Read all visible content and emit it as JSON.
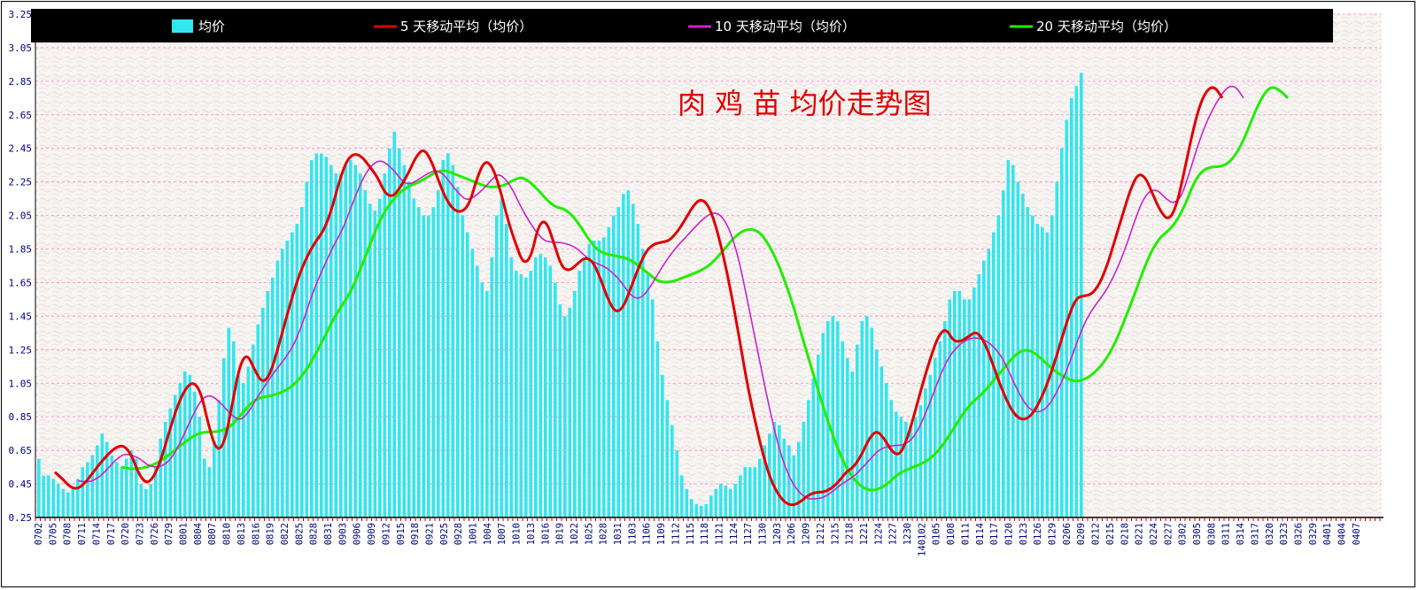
{
  "chart_data": {
    "type": "bar",
    "title": "肉 鸡 苗 均价走势图",
    "ylim": [
      0.25,
      3.25
    ],
    "y_ticks": [
      "0.25",
      "0.45",
      "0.65",
      "0.85",
      "1.05",
      "1.25",
      "1.45",
      "1.65",
      "1.85",
      "2.05",
      "2.25",
      "2.45",
      "2.65",
      "2.85",
      "3.05",
      "3.25"
    ],
    "x_ticks": [
      "0702",
      "0705",
      "0708",
      "0711",
      "0714",
      "0717",
      "0720",
      "0723",
      "0726",
      "0729",
      "0801",
      "0804",
      "0807",
      "0810",
      "0813",
      "0816",
      "0819",
      "0822",
      "0825",
      "0828",
      "0831",
      "0903",
      "0906",
      "0909",
      "0912",
      "0915",
      "0918",
      "0921",
      "0925",
      "0928",
      "1001",
      "1004",
      "1007",
      "1010",
      "1013",
      "1016",
      "1019",
      "1022",
      "1025",
      "1028",
      "1031",
      "1103",
      "1106",
      "1109",
      "1112",
      "1115",
      "1118",
      "1121",
      "1124",
      "1127",
      "1130",
      "1203",
      "1206",
      "1209",
      "1212",
      "1215",
      "1218",
      "1221",
      "1224",
      "1227",
      "1230",
      "140102",
      "0105",
      "0108",
      "0111",
      "0114",
      "0117",
      "0120",
      "0123",
      "0126",
      "0129",
      "0206",
      "0209",
      "0212",
      "0215",
      "0218",
      "0221",
      "0224",
      "0227",
      "0302",
      "0305",
      "0308",
      "0311",
      "0314",
      "0317",
      "0320",
      "0323",
      "0326",
      "0329",
      "0401",
      "0404",
      "0407"
    ],
    "grid": true,
    "legend_position": "top",
    "colors": {
      "bar": "#33E6EE",
      "ma5": "#E00000",
      "ma10": "#CC22CC",
      "ma20": "#22EE00",
      "title": "#E00000",
      "legend_bg": "#000000",
      "grid": "#FF99CC",
      "axis_text": "#000080"
    },
    "series": [
      {
        "name": "均价",
        "type": "bar",
        "values": [
          0.6,
          0.5,
          0.5,
          0.48,
          0.45,
          0.42,
          0.4,
          0.43,
          0.48,
          0.55,
          0.58,
          0.62,
          0.68,
          0.75,
          0.7,
          0.62,
          0.58,
          0.55,
          0.6,
          0.65,
          0.6,
          0.45,
          0.42,
          0.45,
          0.55,
          0.72,
          0.82,
          0.9,
          0.98,
          1.05,
          1.12,
          1.1,
          1.0,
          0.85,
          0.6,
          0.55,
          0.7,
          0.95,
          1.2,
          1.38,
          1.3,
          1.1,
          1.05,
          1.15,
          1.28,
          1.4,
          1.5,
          1.6,
          1.68,
          1.78,
          1.85,
          1.9,
          1.95,
          2.0,
          2.1,
          2.25,
          2.38,
          2.42,
          2.42,
          2.4,
          2.35,
          2.3,
          2.3,
          2.35,
          2.38,
          2.35,
          2.3,
          2.2,
          2.12,
          2.08,
          2.15,
          2.3,
          2.45,
          2.55,
          2.45,
          2.35,
          2.25,
          2.15,
          2.1,
          2.05,
          2.05,
          2.1,
          2.2,
          2.38,
          2.42,
          2.35,
          2.22,
          2.05,
          1.95,
          1.85,
          1.75,
          1.65,
          1.6,
          1.8,
          2.05,
          2.15,
          2.0,
          1.8,
          1.72,
          1.7,
          1.68,
          1.72,
          1.8,
          1.82,
          1.8,
          1.75,
          1.65,
          1.52,
          1.45,
          1.5,
          1.6,
          1.72,
          1.8,
          1.88,
          1.9,
          1.9,
          1.92,
          1.98,
          2.05,
          2.1,
          2.18,
          2.2,
          2.12,
          2.0,
          1.85,
          1.7,
          1.55,
          1.3,
          1.1,
          0.95,
          0.8,
          0.65,
          0.5,
          0.42,
          0.36,
          0.33,
          0.32,
          0.33,
          0.38,
          0.42,
          0.45,
          0.44,
          0.42,
          0.45,
          0.5,
          0.55,
          0.55,
          0.55,
          0.6,
          0.68,
          0.75,
          0.82,
          0.8,
          0.72,
          0.68,
          0.62,
          0.7,
          0.82,
          0.95,
          1.08,
          1.22,
          1.35,
          1.42,
          1.45,
          1.42,
          1.3,
          1.2,
          1.12,
          1.28,
          1.42,
          1.45,
          1.38,
          1.25,
          1.15,
          1.05,
          0.95,
          0.88,
          0.85,
          0.82,
          0.8,
          0.85,
          0.92,
          1.02,
          1.1,
          1.2,
          1.3,
          1.42,
          1.55,
          1.6,
          1.6,
          1.55,
          1.55,
          1.62,
          1.7,
          1.78,
          1.85,
          1.95,
          2.05,
          2.2,
          2.38,
          2.35,
          2.25,
          2.18,
          2.1,
          2.05,
          2.0,
          1.98,
          1.95,
          2.05,
          2.25,
          2.45,
          2.62,
          2.75,
          2.82,
          2.9
        ]
      },
      {
        "name": "5 天移动平均（均价）",
        "type": "line",
        "values": [
          0.52,
          0.48,
          0.43,
          0.42,
          0.46,
          0.52,
          0.58,
          0.63,
          0.67,
          0.68,
          0.62,
          0.5,
          0.45,
          0.5,
          0.62,
          0.78,
          0.92,
          1.02,
          1.06,
          1.0,
          0.8,
          0.65,
          0.68,
          0.9,
          1.15,
          1.23,
          1.13,
          1.05,
          1.1,
          1.25,
          1.42,
          1.58,
          1.72,
          1.82,
          1.9,
          1.96,
          2.08,
          2.25,
          2.38,
          2.42,
          2.4,
          2.34,
          2.28,
          2.18,
          2.16,
          2.22,
          2.3,
          2.4,
          2.45,
          2.38,
          2.25,
          2.14,
          2.08,
          2.07,
          2.12,
          2.28,
          2.38,
          2.34,
          2.2,
          2.02,
          1.88,
          1.76,
          1.8,
          2.0,
          2.02,
          1.88,
          1.74,
          1.72,
          1.76,
          1.8,
          1.78,
          1.68,
          1.55,
          1.47,
          1.5,
          1.62,
          1.74,
          1.84,
          1.88,
          1.89,
          1.9,
          1.95,
          2.02,
          2.1,
          2.15,
          2.12,
          2.0,
          1.82,
          1.6,
          1.35,
          1.08,
          0.86,
          0.66,
          0.5,
          0.4,
          0.34,
          0.32,
          0.34,
          0.38,
          0.4,
          0.4,
          0.42,
          0.46,
          0.52,
          0.55,
          0.62,
          0.72,
          0.77,
          0.72,
          0.64,
          0.62,
          0.72,
          0.88,
          1.05,
          1.2,
          1.33,
          1.38,
          1.3,
          1.3,
          1.33,
          1.36,
          1.3,
          1.18,
          1.05,
          0.94,
          0.86,
          0.83,
          0.85,
          0.92,
          1.02,
          1.15,
          1.3,
          1.45,
          1.56,
          1.57,
          1.58,
          1.64,
          1.75,
          1.9,
          2.05,
          2.2,
          2.3,
          2.28,
          2.17,
          2.07,
          2.02,
          2.1,
          2.3,
          2.52,
          2.7,
          2.8,
          2.82,
          2.75
        ]
      },
      {
        "name": "10 天移动平均（均价）",
        "type": "line",
        "values": [
          0.47,
          0.46,
          0.47,
          0.5,
          0.55,
          0.6,
          0.63,
          0.62,
          0.6,
          0.56,
          0.55,
          0.56,
          0.6,
          0.68,
          0.78,
          0.88,
          0.96,
          0.98,
          0.95,
          0.9,
          0.85,
          0.83,
          0.88,
          0.96,
          1.03,
          1.1,
          1.16,
          1.22,
          1.3,
          1.42,
          1.56,
          1.68,
          1.78,
          1.88,
          1.96,
          2.08,
          2.2,
          2.3,
          2.36,
          2.38,
          2.35,
          2.3,
          2.24,
          2.24,
          2.27,
          2.3,
          2.32,
          2.3,
          2.24,
          2.18,
          2.14,
          2.16,
          2.2,
          2.25,
          2.3,
          2.27,
          2.2,
          2.1,
          2.02,
          1.95,
          1.9,
          1.89,
          1.89,
          1.88,
          1.86,
          1.82,
          1.78,
          1.76,
          1.74,
          1.7,
          1.65,
          1.58,
          1.55,
          1.58,
          1.65,
          1.73,
          1.8,
          1.86,
          1.91,
          1.96,
          2.01,
          2.05,
          2.07,
          2.04,
          1.95,
          1.8,
          1.58,
          1.35,
          1.12,
          0.9,
          0.7,
          0.55,
          0.45,
          0.39,
          0.36,
          0.36,
          0.37,
          0.4,
          0.44,
          0.47,
          0.5,
          0.55,
          0.6,
          0.65,
          0.67,
          0.68,
          0.68,
          0.7,
          0.76,
          0.86,
          0.98,
          1.1,
          1.2,
          1.26,
          1.3,
          1.32,
          1.32,
          1.3,
          1.26,
          1.2,
          1.1,
          1.0,
          0.92,
          0.88,
          0.88,
          0.92,
          1.0,
          1.1,
          1.22,
          1.35,
          1.45,
          1.52,
          1.58,
          1.66,
          1.76,
          1.88,
          2.02,
          2.14,
          2.2,
          2.2,
          2.15,
          2.12,
          2.16,
          2.3,
          2.45,
          2.58,
          2.68,
          2.76,
          2.82,
          2.82,
          2.75
        ]
      },
      {
        "name": "20 天移动平均（均价）",
        "type": "line",
        "values": [
          0.55,
          0.54,
          0.54,
          0.55,
          0.57,
          0.6,
          0.64,
          0.68,
          0.72,
          0.75,
          0.76,
          0.76,
          0.77,
          0.8,
          0.86,
          0.92,
          0.96,
          0.97,
          0.98,
          1.0,
          1.03,
          1.08,
          1.15,
          1.24,
          1.34,
          1.44,
          1.52,
          1.6,
          1.72,
          1.85,
          1.98,
          2.08,
          2.15,
          2.2,
          2.23,
          2.25,
          2.28,
          2.31,
          2.32,
          2.3,
          2.28,
          2.26,
          2.24,
          2.22,
          2.22,
          2.23,
          2.26,
          2.28,
          2.25,
          2.2,
          2.14,
          2.1,
          2.09,
          2.05,
          1.98,
          1.9,
          1.84,
          1.82,
          1.81,
          1.8,
          1.78,
          1.74,
          1.7,
          1.66,
          1.65,
          1.66,
          1.68,
          1.7,
          1.72,
          1.75,
          1.8,
          1.86,
          1.92,
          1.96,
          1.97,
          1.95,
          1.88,
          1.78,
          1.65,
          1.5,
          1.32,
          1.15,
          0.98,
          0.82,
          0.68,
          0.56,
          0.48,
          0.43,
          0.41,
          0.42,
          0.45,
          0.5,
          0.53,
          0.55,
          0.57,
          0.6,
          0.65,
          0.72,
          0.8,
          0.88,
          0.94,
          0.98,
          1.04,
          1.1,
          1.16,
          1.22,
          1.25,
          1.24,
          1.2,
          1.15,
          1.11,
          1.08,
          1.06,
          1.07,
          1.1,
          1.15,
          1.22,
          1.32,
          1.45,
          1.58,
          1.72,
          1.84,
          1.92,
          1.96,
          2.02,
          2.12,
          2.25,
          2.32,
          2.34,
          2.34,
          2.36,
          2.42,
          2.52,
          2.65,
          2.76,
          2.82,
          2.8,
          2.75
        ]
      }
    ]
  }
}
